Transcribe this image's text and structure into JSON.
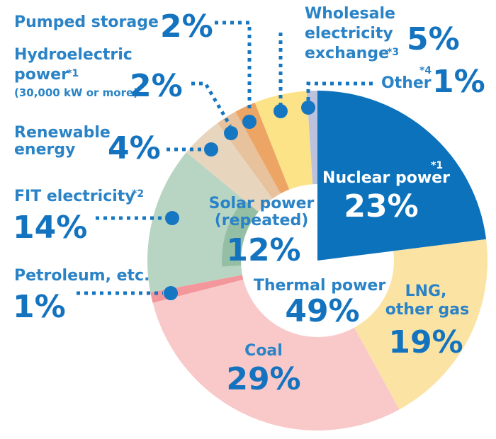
{
  "chart_data": {
    "type": "pie",
    "slices": [
      {
        "label": "Nuclear power",
        "note": "*1",
        "value": 23,
        "value_label": "23%",
        "color": "#0b72bb"
      },
      {
        "label": "LNG, other gas",
        "value": 19,
        "value_label": "19%",
        "color": "#fbe3a4"
      },
      {
        "label": "Coal",
        "value": 29,
        "value_label": "29%",
        "color": "#f9c9c9"
      },
      {
        "label": "Petroleum, etc.",
        "value": 1,
        "value_label": "1%",
        "color": "#f3979c"
      },
      {
        "label": "FIT electricity",
        "note": "*2",
        "value": 14,
        "value_label": "14%",
        "color": "#b8d5c3",
        "sub_segment": {
          "label": "Solar power (repeated)",
          "value": 12,
          "value_label": "12%",
          "color": "#95bfa4"
        }
      },
      {
        "label": "Renewable energy",
        "value": 4,
        "value_label": "4%",
        "color": "#e7d6bd"
      },
      {
        "label": "Hydroelectric power (30,000 kW or more)",
        "note": "*1",
        "value": 2,
        "value_label": "2%",
        "color": "#e8c19d"
      },
      {
        "label": "Pumped storage",
        "value": 2,
        "value_label": "2%",
        "color": "#eca565"
      },
      {
        "label": "Wholesale electricity exchange",
        "note": "*3",
        "value": 5,
        "value_label": "5%",
        "color": "#fde388"
      },
      {
        "label": "Other",
        "note": "*4",
        "value": 1,
        "value_label": "1%",
        "color": "#bcc1de"
      }
    ],
    "group": {
      "label": "Thermal power",
      "value": 49,
      "value_label": "49%",
      "members": [
        "LNG, other gas",
        "Coal",
        "Petroleum, etc."
      ]
    }
  },
  "text": {
    "pumped": {
      "label": "Pumped storage",
      "pct": "2%"
    },
    "hydro": {
      "line1": "Hydroelectric",
      "line2": "power",
      "note": "*1",
      "line3": "(30,000 kW or more)",
      "pct": "2%"
    },
    "renewable": {
      "line1": "Renewable",
      "line2": "energy",
      "pct": "4%"
    },
    "fit": {
      "label": "FIT electricity",
      "note": "*2",
      "pct": "14%"
    },
    "petroleum": {
      "label": "Petroleum, etc.",
      "pct": "1%"
    },
    "wholesale": {
      "line1": "Wholesale",
      "line2": "electricity",
      "line3": "exchange",
      "note": "*3",
      "pct": "5%"
    },
    "other": {
      "label": "Other",
      "note": "*4",
      "pct": "1%"
    },
    "nuclear": {
      "label": "Nuclear power",
      "note": "*1",
      "pct": "23%"
    },
    "solar": {
      "line1": "Solar power",
      "line2": "(repeated)",
      "pct": "12%"
    },
    "thermal": {
      "label": "Thermal power",
      "pct": "49%"
    },
    "lng": {
      "line1": "LNG,",
      "line2": "other gas",
      "pct": "19%"
    },
    "coal": {
      "label": "Coal",
      "pct": "29%"
    }
  }
}
